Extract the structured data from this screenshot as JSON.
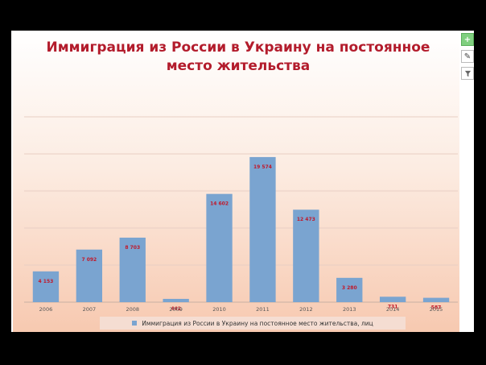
{
  "chart_data": {
    "type": "bar",
    "title": "Иммиграция из России в Украину на постоянное место жительства",
    "categories": [
      "2006",
      "2007",
      "2008",
      "2009",
      "2010",
      "2011",
      "2012",
      "2013",
      "2014",
      "2015"
    ],
    "series": [
      {
        "name": "Иммиграция из России в Украину на постоянное место жительства, лиц",
        "values": [
          4153,
          7092,
          8703,
          442,
          14602,
          19574,
          12473,
          3280,
          731,
          587
        ],
        "labels": [
          "4 153",
          "7 092",
          "8 703",
          "442",
          "14 602",
          "19 574",
          "12 473",
          "3 280",
          "731",
          "587"
        ]
      }
    ],
    "ylim": [
      0,
      25000
    ],
    "grid": true,
    "legend": "bottom",
    "colors": {
      "bar": "#7aa4d0",
      "label": "#c0182a",
      "grid": "#e8cfc4",
      "title": "#b31c2c"
    }
  },
  "toolbar": {
    "add_icon": "plus-icon",
    "style_icon": "brush-icon",
    "filter_icon": "filter-icon"
  }
}
